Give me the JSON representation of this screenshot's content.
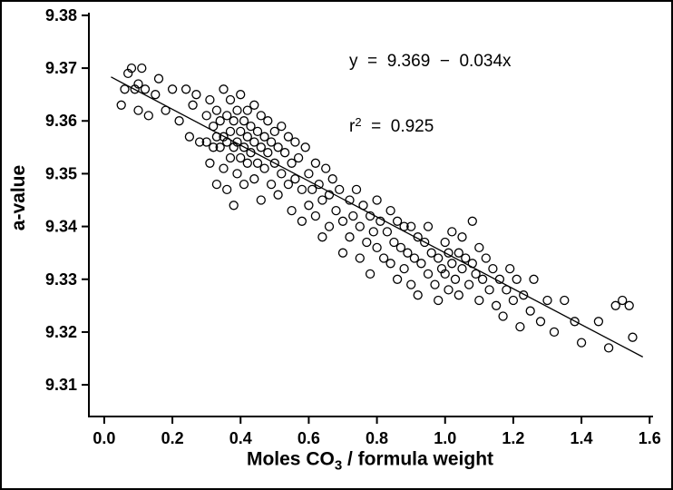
{
  "figure": {
    "y_axis_title": "a-value",
    "x_axis_title_base": "Moles CO",
    "x_axis_title_sub": "3",
    "x_axis_title_rest": " / formula weight",
    "annotation_line1": "y  =  9.369  −  0.034x",
    "annotation_r_base": "r",
    "annotation_r_sup": "2",
    "annotation_r_rest": "  =  0.925"
  },
  "chart_data": {
    "type": "scatter",
    "title": "",
    "xlabel": "Moles CO3 / formula weight",
    "ylabel": "a-value",
    "xlim": [
      0.0,
      1.6
    ],
    "ylim": [
      9.31,
      9.38
    ],
    "grid": false,
    "legend": false,
    "marker": "open-circle",
    "marker_color": "#000000",
    "x_tick_values": [
      0.0,
      0.2,
      0.4,
      0.6,
      0.8,
      1.0,
      1.2,
      1.4,
      1.6
    ],
    "x_tick_labels": [
      "0.0",
      "0.2",
      "0.4",
      "0.6",
      "0.8",
      "1.0",
      "1.2",
      "1.4",
      "1.6"
    ],
    "y_tick_values": [
      9.31,
      9.32,
      9.33,
      9.34,
      9.35,
      9.36,
      9.37,
      9.38
    ],
    "y_tick_labels": [
      "9.31",
      "9.32",
      "9.33",
      "9.34",
      "9.35",
      "9.36",
      "9.37",
      "9.38"
    ],
    "regression": {
      "equation": "y = 9.369 − 0.034x",
      "intercept": 9.369,
      "slope": -0.034,
      "r_squared": 0.925,
      "x_start": 0.02,
      "x_end": 1.58
    },
    "points": [
      [
        0.05,
        9.363
      ],
      [
        0.06,
        9.366
      ],
      [
        0.07,
        9.369
      ],
      [
        0.08,
        9.37
      ],
      [
        0.09,
        9.366
      ],
      [
        0.1,
        9.367
      ],
      [
        0.1,
        9.362
      ],
      [
        0.11,
        9.37
      ],
      [
        0.12,
        9.366
      ],
      [
        0.13,
        9.361
      ],
      [
        0.15,
        9.365
      ],
      [
        0.16,
        9.368
      ],
      [
        0.18,
        9.362
      ],
      [
        0.2,
        9.366
      ],
      [
        0.22,
        9.36
      ],
      [
        0.24,
        9.366
      ],
      [
        0.25,
        9.357
      ],
      [
        0.26,
        9.363
      ],
      [
        0.27,
        9.365
      ],
      [
        0.28,
        9.356
      ],
      [
        0.3,
        9.361
      ],
      [
        0.3,
        9.356
      ],
      [
        0.31,
        9.364
      ],
      [
        0.31,
        9.352
      ],
      [
        0.32,
        9.359
      ],
      [
        0.32,
        9.355
      ],
      [
        0.33,
        9.362
      ],
      [
        0.33,
        9.357
      ],
      [
        0.33,
        9.348
      ],
      [
        0.34,
        9.36
      ],
      [
        0.34,
        9.355
      ],
      [
        0.35,
        9.366
      ],
      [
        0.35,
        9.357
      ],
      [
        0.35,
        9.351
      ],
      [
        0.36,
        9.361
      ],
      [
        0.36,
        9.356
      ],
      [
        0.36,
        9.347
      ],
      [
        0.37,
        9.364
      ],
      [
        0.37,
        9.358
      ],
      [
        0.37,
        9.353
      ],
      [
        0.38,
        9.36
      ],
      [
        0.38,
        9.355
      ],
      [
        0.38,
        9.344
      ],
      [
        0.39,
        9.362
      ],
      [
        0.39,
        9.356
      ],
      [
        0.39,
        9.35
      ],
      [
        0.4,
        9.365
      ],
      [
        0.4,
        9.358
      ],
      [
        0.4,
        9.353
      ],
      [
        0.41,
        9.36
      ],
      [
        0.41,
        9.355
      ],
      [
        0.41,
        9.348
      ],
      [
        0.42,
        9.362
      ],
      [
        0.42,
        9.357
      ],
      [
        0.42,
        9.352
      ],
      [
        0.43,
        9.359
      ],
      [
        0.43,
        9.354
      ],
      [
        0.44,
        9.363
      ],
      [
        0.44,
        9.356
      ],
      [
        0.44,
        9.349
      ],
      [
        0.45,
        9.358
      ],
      [
        0.45,
        9.352
      ],
      [
        0.46,
        9.361
      ],
      [
        0.46,
        9.355
      ],
      [
        0.46,
        9.345
      ],
      [
        0.47,
        9.357
      ],
      [
        0.47,
        9.351
      ],
      [
        0.48,
        9.36
      ],
      [
        0.48,
        9.354
      ],
      [
        0.49,
        9.356
      ],
      [
        0.49,
        9.348
      ],
      [
        0.5,
        9.358
      ],
      [
        0.5,
        9.352
      ],
      [
        0.51,
        9.355
      ],
      [
        0.51,
        9.346
      ],
      [
        0.52,
        9.359
      ],
      [
        0.52,
        9.35
      ],
      [
        0.53,
        9.354
      ],
      [
        0.54,
        9.357
      ],
      [
        0.54,
        9.348
      ],
      [
        0.55,
        9.352
      ],
      [
        0.55,
        9.343
      ],
      [
        0.56,
        9.356
      ],
      [
        0.56,
        9.349
      ],
      [
        0.57,
        9.353
      ],
      [
        0.58,
        9.347
      ],
      [
        0.58,
        9.341
      ],
      [
        0.59,
        9.355
      ],
      [
        0.6,
        9.35
      ],
      [
        0.6,
        9.344
      ],
      [
        0.61,
        9.347
      ],
      [
        0.62,
        9.352
      ],
      [
        0.62,
        9.342
      ],
      [
        0.63,
        9.348
      ],
      [
        0.64,
        9.345
      ],
      [
        0.64,
        9.338
      ],
      [
        0.65,
        9.351
      ],
      [
        0.66,
        9.346
      ],
      [
        0.66,
        9.34
      ],
      [
        0.67,
        9.349
      ],
      [
        0.68,
        9.343
      ],
      [
        0.69,
        9.347
      ],
      [
        0.7,
        9.341
      ],
      [
        0.7,
        9.335
      ],
      [
        0.72,
        9.345
      ],
      [
        0.72,
        9.338
      ],
      [
        0.73,
        9.342
      ],
      [
        0.74,
        9.347
      ],
      [
        0.75,
        9.34
      ],
      [
        0.75,
        9.334
      ],
      [
        0.76,
        9.344
      ],
      [
        0.77,
        9.337
      ],
      [
        0.78,
        9.342
      ],
      [
        0.78,
        9.331
      ],
      [
        0.79,
        9.339
      ],
      [
        0.8,
        9.345
      ],
      [
        0.8,
        9.336
      ],
      [
        0.81,
        9.341
      ],
      [
        0.82,
        9.334
      ],
      [
        0.83,
        9.339
      ],
      [
        0.84,
        9.343
      ],
      [
        0.84,
        9.333
      ],
      [
        0.85,
        9.337
      ],
      [
        0.86,
        9.341
      ],
      [
        0.86,
        9.33
      ],
      [
        0.87,
        9.336
      ],
      [
        0.88,
        9.34
      ],
      [
        0.88,
        9.332
      ],
      [
        0.89,
        9.335
      ],
      [
        0.9,
        9.34
      ],
      [
        0.9,
        9.329
      ],
      [
        0.91,
        9.334
      ],
      [
        0.92,
        9.338
      ],
      [
        0.92,
        9.327
      ],
      [
        0.93,
        9.333
      ],
      [
        0.94,
        9.337
      ],
      [
        0.95,
        9.331
      ],
      [
        0.95,
        9.34
      ],
      [
        0.96,
        9.335
      ],
      [
        0.97,
        9.329
      ],
      [
        0.98,
        9.334
      ],
      [
        0.98,
        9.326
      ],
      [
        0.99,
        9.332
      ],
      [
        1.0,
        9.337
      ],
      [
        1.0,
        9.331
      ],
      [
        1.01,
        9.335
      ],
      [
        1.01,
        9.328
      ],
      [
        1.02,
        9.333
      ],
      [
        1.02,
        9.339
      ],
      [
        1.03,
        9.33
      ],
      [
        1.04,
        9.335
      ],
      [
        1.04,
        9.327
      ],
      [
        1.05,
        9.332
      ],
      [
        1.05,
        9.338
      ],
      [
        1.06,
        9.334
      ],
      [
        1.07,
        9.329
      ],
      [
        1.08,
        9.333
      ],
      [
        1.08,
        9.341
      ],
      [
        1.09,
        9.331
      ],
      [
        1.1,
        9.336
      ],
      [
        1.1,
        9.326
      ],
      [
        1.11,
        9.33
      ],
      [
        1.12,
        9.334
      ],
      [
        1.13,
        9.328
      ],
      [
        1.14,
        9.332
      ],
      [
        1.15,
        9.325
      ],
      [
        1.16,
        9.33
      ],
      [
        1.17,
        9.323
      ],
      [
        1.18,
        9.328
      ],
      [
        1.19,
        9.332
      ],
      [
        1.2,
        9.326
      ],
      [
        1.21,
        9.33
      ],
      [
        1.22,
        9.321
      ],
      [
        1.23,
        9.327
      ],
      [
        1.25,
        9.324
      ],
      [
        1.26,
        9.33
      ],
      [
        1.28,
        9.322
      ],
      [
        1.3,
        9.326
      ],
      [
        1.32,
        9.32
      ],
      [
        1.35,
        9.326
      ],
      [
        1.38,
        9.322
      ],
      [
        1.4,
        9.318
      ],
      [
        1.45,
        9.322
      ],
      [
        1.48,
        9.317
      ],
      [
        1.5,
        9.325
      ],
      [
        1.52,
        9.326
      ],
      [
        1.54,
        9.325
      ],
      [
        1.55,
        9.319
      ]
    ]
  }
}
